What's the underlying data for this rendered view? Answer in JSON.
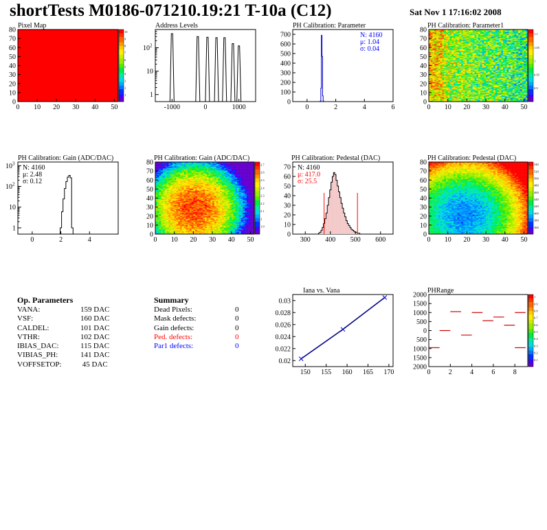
{
  "header": {
    "title": "shortTests M0186-071210.19:21 T-10a (C12)",
    "date": "Sat Nov  1 17:16:02 2008"
  },
  "chart_data": [
    {
      "type": "heatmap",
      "id": "pixel-map",
      "title": "Pixel Map",
      "xlim": [
        0,
        52
      ],
      "ylim": [
        0,
        80
      ],
      "xticks": [
        0,
        10,
        20,
        30,
        40,
        50
      ],
      "yticks": [
        0,
        10,
        20,
        30,
        40,
        50,
        60,
        70,
        80
      ],
      "zlim": [
        0,
        10
      ],
      "zticks": [
        "1",
        "2",
        "3",
        "4",
        "5",
        "6",
        "7",
        "8",
        "9",
        "10"
      ],
      "uniform_value": 10,
      "fill_color": "#ff0000"
    },
    {
      "type": "bar",
      "id": "address-levels",
      "title": "Address Levels",
      "xlim": [
        -1500,
        1500
      ],
      "log_y": true,
      "ylim": [
        0.5,
        600
      ],
      "xticks": [
        -1000,
        0,
        1000
      ],
      "yticks": [
        "1",
        "10",
        "10^2"
      ],
      "peaks": [
        {
          "x": -1000,
          "height": 400
        },
        {
          "x": -230,
          "height": 300
        },
        {
          "x": 60,
          "height": 280
        },
        {
          "x": 330,
          "height": 270
        },
        {
          "x": 570,
          "height": 270
        },
        {
          "x": 820,
          "height": 150
        },
        {
          "x": 1000,
          "height": 120
        }
      ]
    },
    {
      "type": "bar",
      "id": "ph-calibration-parameter",
      "title": "PH Calibration: Parameter",
      "xlim": [
        -1,
        6
      ],
      "ylim": [
        0,
        750
      ],
      "xticks": [
        0,
        2,
        4,
        6
      ],
      "yticks": [
        0,
        100,
        200,
        300,
        400,
        500,
        600,
        700
      ],
      "bins": [
        [
          0.94,
          8
        ],
        [
          0.98,
          140
        ],
        [
          1.02,
          690
        ],
        [
          1.06,
          470
        ],
        [
          1.1,
          60
        ],
        [
          1.14,
          6
        ]
      ],
      "stats": {
        "n": "N: 4160",
        "mean": "μ: 1.04",
        "sigma": "σ: 0.04"
      }
    },
    {
      "type": "heatmap",
      "id": "ph-calibration-parameter1",
      "title": "PH Calibration: Parameter1",
      "xlim": [
        0,
        52
      ],
      "ylim": [
        0,
        80
      ],
      "xticks": [
        0,
        10,
        20,
        30,
        40,
        50
      ],
      "yticks": [
        0,
        10,
        20,
        30,
        40,
        50,
        60,
        70,
        80
      ],
      "zlim": [
        0.9,
        1.15
      ],
      "zticks": [
        "0.9",
        "0.95",
        "1",
        "1.05",
        "1.1"
      ]
    },
    {
      "type": "bar",
      "id": "ph-calibration-gain-hist",
      "title": "PH Calibration: Gain (ADC/DAC)",
      "xlim": [
        -1,
        6
      ],
      "log_y": true,
      "ylim": [
        0.5,
        1500
      ],
      "xticks": [
        0,
        2,
        4
      ],
      "yticks": [
        "1",
        "10",
        "10^2",
        "10^3"
      ],
      "bins": [
        [
          2.0,
          1
        ],
        [
          2.1,
          6
        ],
        [
          2.2,
          25
        ],
        [
          2.3,
          80
        ],
        [
          2.4,
          170
        ],
        [
          2.5,
          280
        ],
        [
          2.6,
          340
        ],
        [
          2.7,
          260
        ],
        [
          2.8,
          1
        ]
      ],
      "stats": {
        "n": "N: 4160",
        "mean": "μ: 2.48",
        "sigma": "σ: 0.12"
      }
    },
    {
      "type": "heatmap",
      "id": "ph-calibration-gain-map",
      "title": "PH Calibration: Gain (ADC/DAC)",
      "xlim": [
        0,
        52
      ],
      "ylim": [
        0,
        80
      ],
      "xticks": [
        0,
        10,
        20,
        30,
        40,
        50
      ],
      "yticks": [
        0,
        10,
        20,
        30,
        40,
        50,
        60,
        70,
        80
      ],
      "zlim": [
        1.9,
        2.7
      ],
      "zticks": [
        "1.9",
        "2",
        "2.1",
        "2.2",
        "2.3",
        "2.4",
        "2.5",
        "2.6",
        "2.7"
      ]
    },
    {
      "type": "bar",
      "id": "ph-calibration-pedestal-hist",
      "title": "PH Calibration: Pedestal (DAC)",
      "xlim": [
        250,
        650
      ],
      "ylim": [
        0,
        75
      ],
      "xticks": [
        300,
        400,
        500,
        600
      ],
      "yticks": [
        0,
        10,
        20,
        30,
        40,
        50,
        60,
        70
      ],
      "bins": [
        [
          355,
          1
        ],
        [
          360,
          2
        ],
        [
          365,
          4
        ],
        [
          370,
          7
        ],
        [
          375,
          11
        ],
        [
          380,
          16
        ],
        [
          385,
          22
        ],
        [
          390,
          30
        ],
        [
          395,
          38
        ],
        [
          400,
          46
        ],
        [
          405,
          54
        ],
        [
          410,
          60
        ],
        [
          415,
          64
        ],
        [
          420,
          62
        ],
        [
          425,
          56
        ],
        [
          430,
          50
        ],
        [
          435,
          44
        ],
        [
          440,
          38
        ],
        [
          445,
          32
        ],
        [
          450,
          27
        ],
        [
          455,
          22
        ],
        [
          460,
          18
        ],
        [
          465,
          14
        ],
        [
          470,
          11
        ],
        [
          475,
          9
        ],
        [
          480,
          7
        ],
        [
          485,
          5
        ],
        [
          490,
          4
        ],
        [
          495,
          3
        ],
        [
          500,
          2
        ],
        [
          505,
          2
        ],
        [
          510,
          1
        ],
        [
          515,
          1
        ]
      ],
      "cut_lines": [
        375,
        508
      ],
      "stats": {
        "n": "N: 4160",
        "mean": "μ: 417.0",
        "sigma": "σ: 25.5"
      }
    },
    {
      "type": "heatmap",
      "id": "ph-calibration-pedestal-map",
      "title": "PH Calibration: Pedestal (DAC)",
      "xlim": [
        0,
        52
      ],
      "ylim": [
        0,
        80
      ],
      "xticks": [
        0,
        10,
        20,
        30,
        40,
        50
      ],
      "yticks": [
        0,
        10,
        20,
        30,
        40,
        50,
        60,
        70,
        80
      ],
      "zlim": [
        360,
        540
      ],
      "zticks": [
        "360",
        "380",
        "400",
        "420",
        "440",
        "460",
        "480",
        "500",
        "520",
        "540"
      ]
    },
    {
      "type": "line",
      "id": "iana-vs-vana",
      "title": "Iana vs. Vana",
      "xlim": [
        147,
        171
      ],
      "ylim": [
        0.019,
        0.031
      ],
      "xticks": [
        150,
        155,
        160,
        165,
        170
      ],
      "yticks": [
        "0.02",
        "0.022",
        "0.024",
        "0.026",
        "0.028",
        "0.03"
      ],
      "x": [
        149,
        159,
        169
      ],
      "y": [
        0.0203,
        0.0252,
        0.0305
      ]
    },
    {
      "type": "scatter",
      "id": "ph-range",
      "title": "PHRange",
      "xlim": [
        0,
        9.2
      ],
      "ylim": [
        -2000,
        2000
      ],
      "xticks": [
        0,
        2,
        4,
        6,
        8
      ],
      "yticks": [
        "2000",
        "1500",
        "1000",
        "500",
        "0",
        "500",
        "1000",
        "1500",
        "2000"
      ],
      "zticks": [
        "0.1",
        "0.2",
        "0.3",
        "0.4",
        "0.5",
        "0.6",
        "0.7",
        "0.8",
        "0.9",
        "1"
      ],
      "x": [
        0.5,
        1.5,
        2.5,
        3.5,
        4.5,
        5.5,
        6.5,
        7.5,
        8.5
      ],
      "y": [
        -950,
        0,
        1050,
        -250,
        1000,
        550,
        750,
        300,
        1000
      ],
      "extra_points": [
        {
          "x": 8.5,
          "y": -950
        }
      ]
    }
  ],
  "op_parameters": {
    "heading": "Op. Parameters",
    "rows": [
      {
        "name": "VANA:",
        "value": "159 DAC"
      },
      {
        "name": "VSF:",
        "value": "160 DAC"
      },
      {
        "name": "CALDEL:",
        "value": "101 DAC"
      },
      {
        "name": "VTHR:",
        "value": "102 DAC"
      },
      {
        "name": "IBIAS_DAC:",
        "value": "115 DAC"
      },
      {
        "name": "VIBIAS_PH:",
        "value": "141 DAC"
      },
      {
        "name": "VOFFSETOP:",
        "value": " 45 DAC"
      }
    ]
  },
  "summary": {
    "heading": "Summary",
    "rows": [
      {
        "name": "Dead Pixels:",
        "value": "0",
        "color": "#000000"
      },
      {
        "name": "Mask defects:",
        "value": "0",
        "color": "#000000"
      },
      {
        "name": "Gain defects:",
        "value": "0",
        "color": "#000000"
      },
      {
        "name": "Ped. defects:",
        "value": "0",
        "color": "#ff0000"
      },
      {
        "name": "Par1 defects:",
        "value": "0",
        "color": "#0000ff"
      }
    ]
  }
}
